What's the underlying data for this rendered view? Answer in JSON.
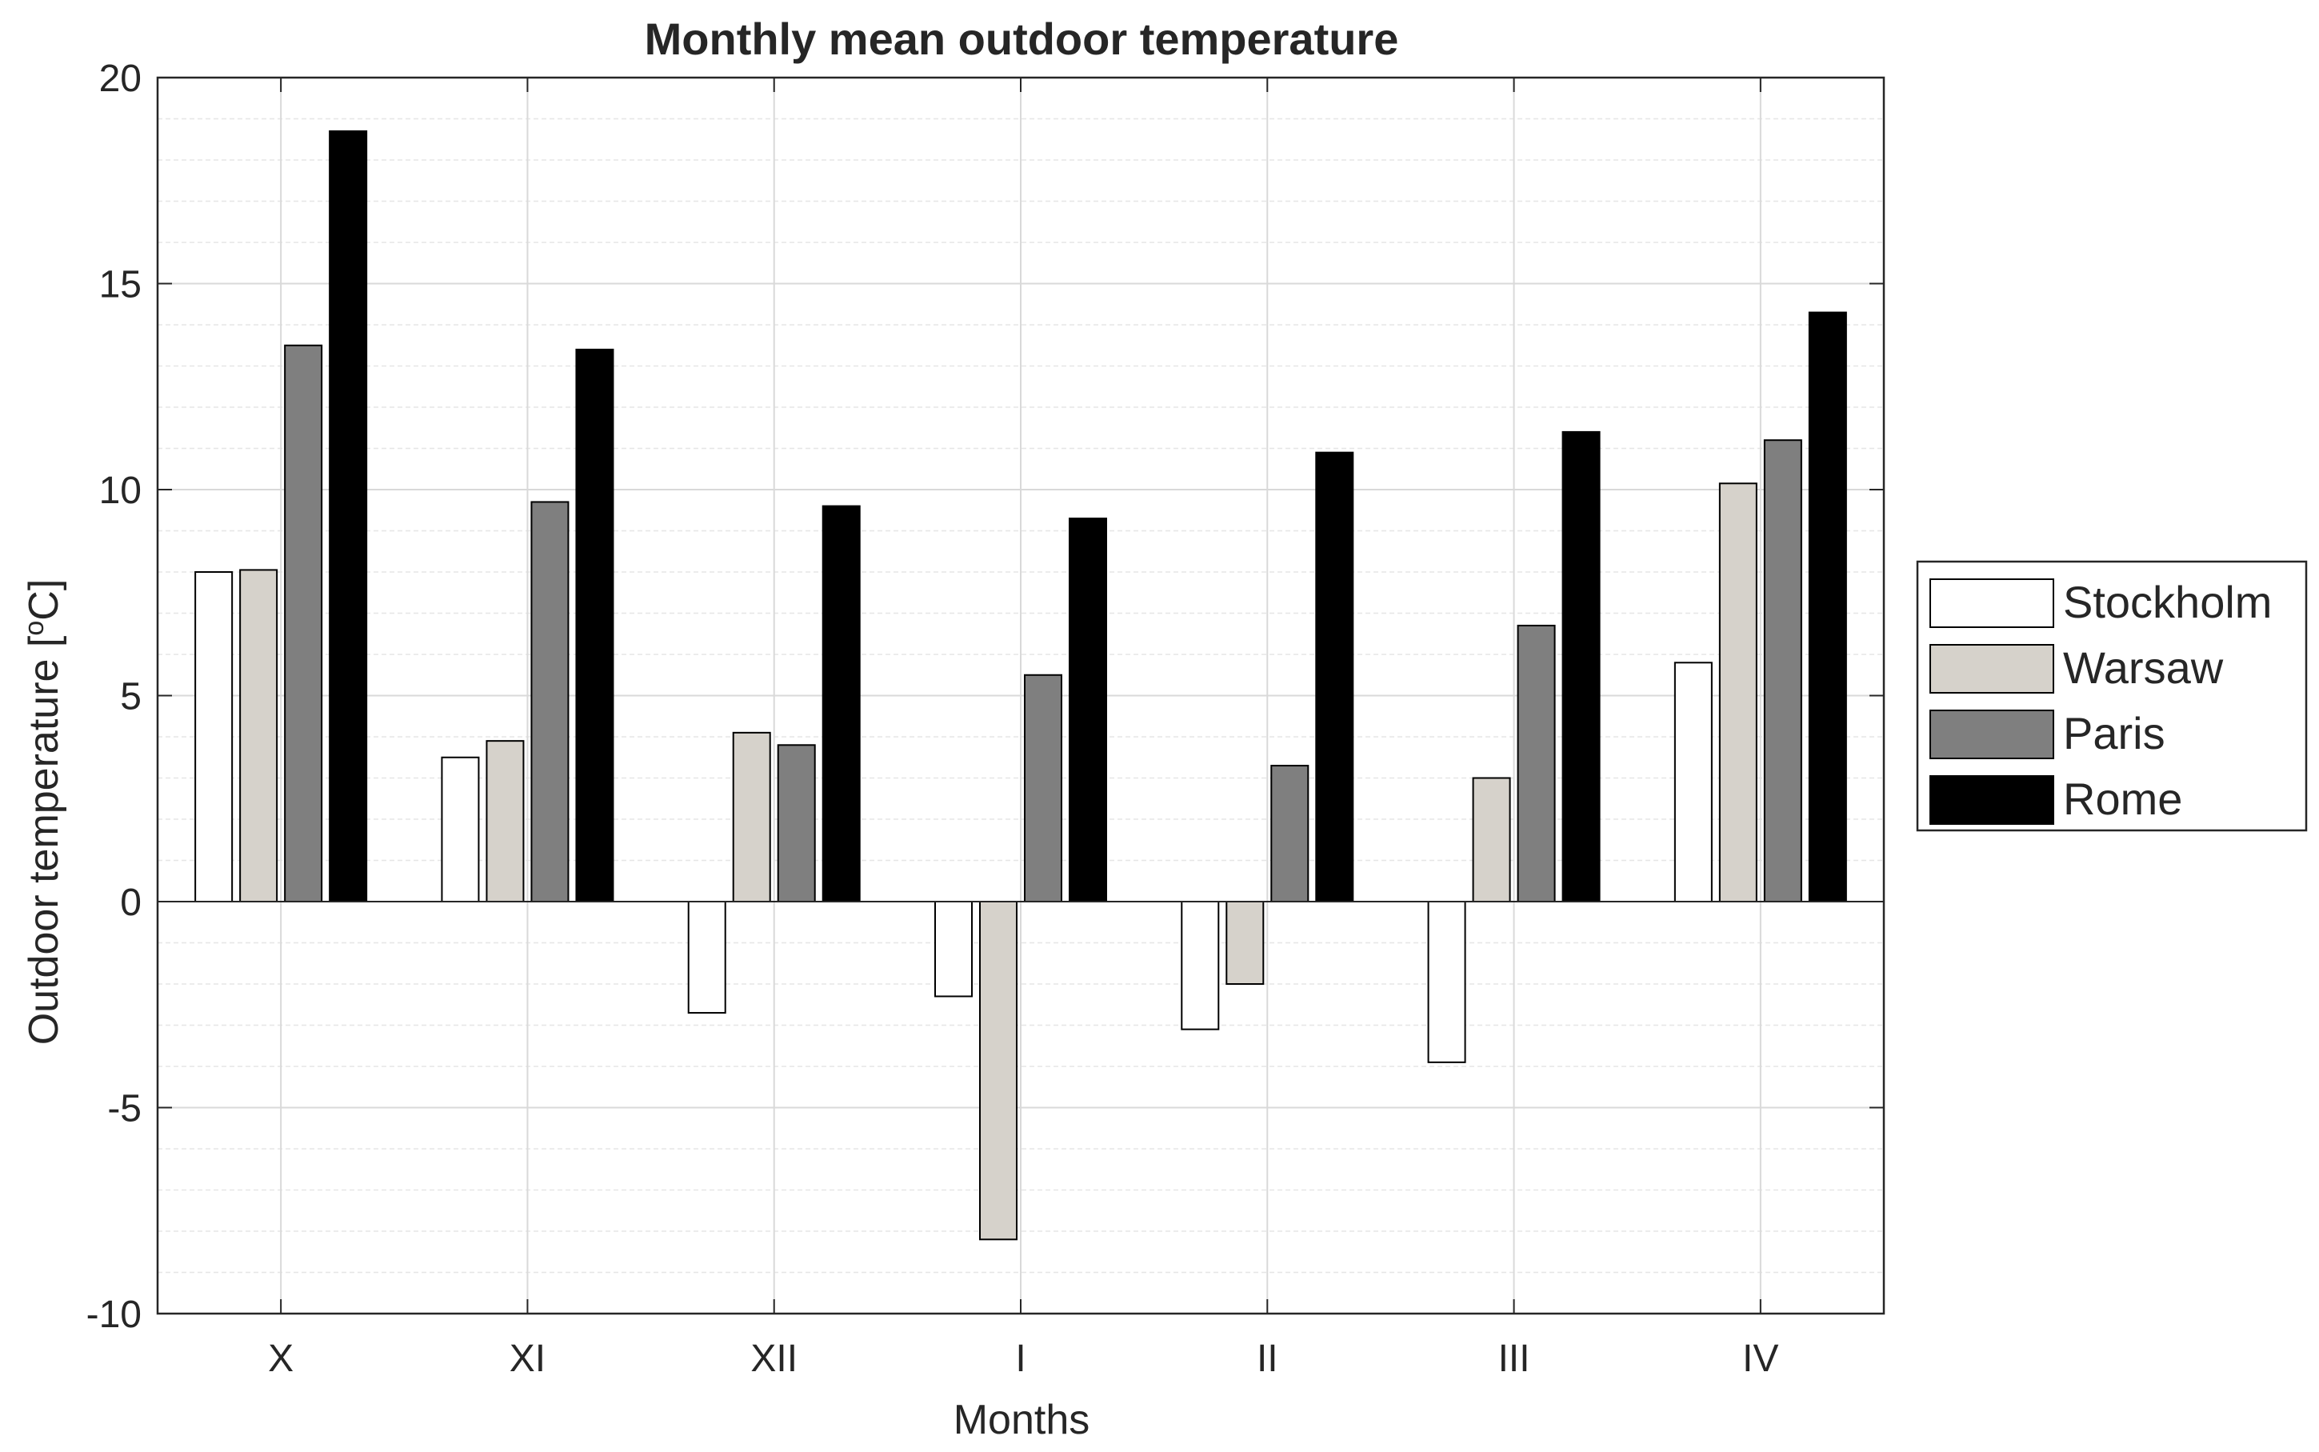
{
  "chart_data": {
    "type": "bar",
    "title": "Monthly mean outdoor temperature",
    "xlabel": "Months",
    "ylabel": "Outdoor temperature [",
    "ylabel_sup": "o",
    "ylabel_tail": "C]",
    "ylim": [
      -10,
      20
    ],
    "yticks": [
      -10,
      -5,
      0,
      5,
      10,
      15,
      20
    ],
    "ytick_labels": [
      "-10",
      "-5",
      "0",
      "5",
      "10",
      "15",
      "20"
    ],
    "minor_grid_step": 1,
    "grid": true,
    "legend_position": "outside-right",
    "categories": [
      "X",
      "XI",
      "XII",
      "I",
      "II",
      "III",
      "IV"
    ],
    "series": [
      {
        "name": "Stockholm",
        "color": "#ffffff",
        "values": [
          8.0,
          3.5,
          -2.7,
          -2.3,
          -3.1,
          -3.9,
          5.8
        ]
      },
      {
        "name": "Warsaw",
        "color": "#d6d2cb",
        "values": [
          8.05,
          3.9,
          4.1,
          -8.2,
          -2.0,
          3.0,
          10.15
        ]
      },
      {
        "name": "Paris",
        "color": "#7f7f7f",
        "values": [
          13.5,
          9.7,
          3.8,
          5.5,
          3.3,
          6.7,
          11.2
        ]
      },
      {
        "name": "Rome",
        "color": "#000000",
        "values": [
          18.7,
          13.4,
          9.6,
          9.3,
          10.9,
          11.4,
          14.3
        ]
      }
    ]
  }
}
